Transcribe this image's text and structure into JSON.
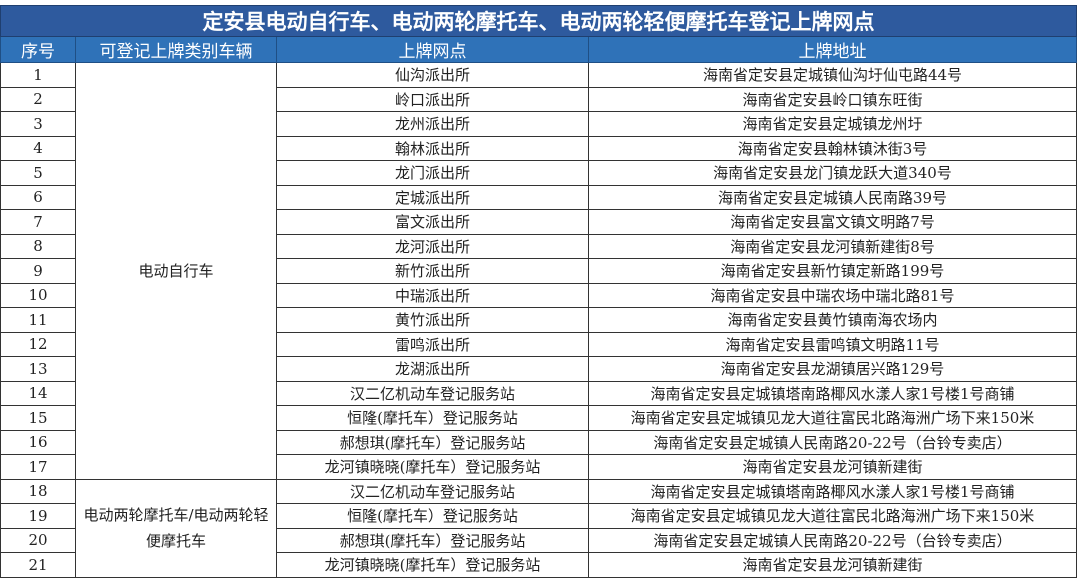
{
  "title": "定安县电动自行车、电动两轮摩托车、电动两轮轻便摩托车登记上牌网点",
  "headers": [
    "序号",
    "可登记上牌类别车辆",
    "上牌网点",
    "上牌地址"
  ],
  "categories": [
    "电动自行车",
    "电动两轮摩托车/电动两轮轻便摩托车"
  ],
  "rows": [
    [
      "1",
      "仙沟派出所",
      "海南省定安县定城镇仙沟圩仙屯路44号"
    ],
    [
      "2",
      "岭口派出所",
      "海南省定安县岭口镇东旺街"
    ],
    [
      "3",
      "龙州派出所",
      "海南省定安县定城镇龙州圩"
    ],
    [
      "4",
      "翰林派出所",
      "海南省定安县翰林镇沐街3号"
    ],
    [
      "5",
      "龙门派出所",
      "海南省定安县龙门镇龙跃大道340号"
    ],
    [
      "6",
      "定城派出所",
      "海南省定安县定城镇人民南路39号"
    ],
    [
      "7",
      "富文派出所",
      "海南省定安县富文镇文明路7号"
    ],
    [
      "8",
      "龙河派出所",
      "海南省定安县龙河镇新建街8号"
    ],
    [
      "9",
      "新竹派出所",
      "海南省定安县新竹镇定新路199号"
    ],
    [
      "10",
      "中瑞派出所",
      "海南省定安县中瑞农场中瑞北路81号"
    ],
    [
      "11",
      "黄竹派出所",
      "海南省定安县黄竹镇南海农场内"
    ],
    [
      "12",
      "雷鸣派出所",
      "海南省定安县雷鸣镇文明路11号"
    ],
    [
      "13",
      "龙湖派出所",
      "海南省定安县龙湖镇居兴路129号"
    ],
    [
      "14",
      "汉二亿机动车登记服务站",
      "海南省定安县定城镇塔南路椰风水漾人家1号楼1号商铺"
    ],
    [
      "15",
      "恒隆(摩托车）登记服务站",
      "海南省定安县定城镇见龙大道往富民北路海洲广场下来150米"
    ],
    [
      "16",
      "郝想琪(摩托车）登记服务站",
      "海南省定安县定城镇人民南路20-22号（台铃专卖店）"
    ],
    [
      "17",
      "龙河镇晓晓(摩托车）登记服务站",
      "海南省定安县龙河镇新建街"
    ],
    [
      "18",
      "汉二亿机动车登记服务站",
      "海南省定安县定城镇塔南路椰风水漾人家1号楼1号商铺"
    ],
    [
      "19",
      "恒隆(摩托车）登记服务站",
      "海南省定安县定城镇见龙大道往富民北路海洲广场下来150米"
    ],
    [
      "20",
      "郝想琪(摩托车）登记服务站",
      "海南省定安县定城镇人民南路20-22号（台铃专卖店）"
    ],
    [
      "21",
      "龙河镇晓晓(摩托车）登记服务站",
      "海南省定安县龙河镇新建街"
    ]
  ]
}
